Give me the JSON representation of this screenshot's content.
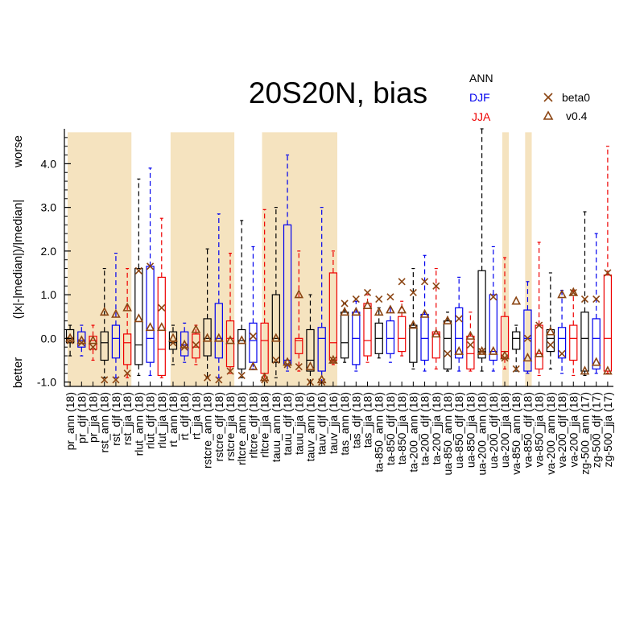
{
  "chart_data": {
    "type": "box",
    "title": "20S20N, bias",
    "ylabel": "(|x|-|median|)/|median|",
    "ylabel_top": "worse",
    "ylabel_bottom": "better",
    "ylim": [
      -1.1,
      4.8
    ],
    "yticks": [
      -1.0,
      0.0,
      1.0,
      2.0,
      3.0,
      4.0
    ],
    "ytick_labels": [
      "-1.0",
      "0.0",
      "1.0",
      "2.0",
      "3.0",
      "4.0"
    ],
    "legend": {
      "seasons": [
        {
          "label": "ANN",
          "color": "#000000"
        },
        {
          "label": "DJF",
          "color": "#0000ee"
        },
        {
          "label": "JJA",
          "color": "#ee0000"
        }
      ],
      "models": [
        {
          "label": "beta0",
          "marker": "x",
          "color": "#8b4513"
        },
        {
          "label": "v0.4",
          "marker": "triangle",
          "color": "#8b4513"
        }
      ],
      "placement": "top-right"
    },
    "highlight_color": "#f5e3bf",
    "highlight_ranges": [
      [
        0,
        5
      ],
      [
        9,
        14
      ],
      [
        17,
        23
      ],
      [
        38,
        38
      ],
      [
        40,
        40
      ]
    ],
    "categories": [
      "pr_ann (18)",
      "pr_djf (18)",
      "pr_jja (18)",
      "rst_ann (18)",
      "rst_djf (18)",
      "rst_jja (18)",
      "rlut_ann (18)",
      "rlut_djf (18)",
      "rlut_jja (18)",
      "rt_ann (18)",
      "rt_djf (18)",
      "rt_jja (18)",
      "rstcre_ann (18)",
      "rstcre_djf (18)",
      "rstcre_jja (18)",
      "rltcre_ann (18)",
      "rltcre_djf (18)",
      "rltcre_jja (18)",
      "tauu_ann (18)",
      "tauu_djf (18)",
      "tauu_jja (18)",
      "tauv_ann (16)",
      "tauv_djf (16)",
      "tauv_jja (16)",
      "tas_ann (18)",
      "tas_djf (18)",
      "tas_jja (18)",
      "ta-850_ann (18)",
      "ta-850_djf (18)",
      "ta-850_jja (18)",
      "ta-200_ann (18)",
      "ta-200_djf (18)",
      "ta-200_jja (18)",
      "ua-850_ann (18)",
      "ua-850_djf (18)",
      "ua-850_jja (18)",
      "ua-200_ann (18)",
      "ua-200_djf (18)",
      "ua-200_jja (18)",
      "va-850_ann (18)",
      "va-850_djf (18)",
      "va-850_jja (18)",
      "va-200_ann (18)",
      "va-200_djf (18)",
      "va-200_jja (18)",
      "zg-500_ann (17)",
      "zg-500_djf (17)",
      "zg-500_jja (17)"
    ],
    "seasons": [
      "ANN",
      "DJF",
      "JJA",
      "ANN",
      "DJF",
      "JJA",
      "ANN",
      "DJF",
      "JJA",
      "ANN",
      "DJF",
      "JJA",
      "ANN",
      "DJF",
      "JJA",
      "ANN",
      "DJF",
      "JJA",
      "ANN",
      "DJF",
      "JJA",
      "ANN",
      "DJF",
      "JJA",
      "ANN",
      "DJF",
      "JJA",
      "ANN",
      "DJF",
      "JJA",
      "ANN",
      "DJF",
      "JJA",
      "ANN",
      "DJF",
      "JJA",
      "ANN",
      "DJF",
      "JJA",
      "ANN",
      "DJF",
      "JJA",
      "ANN",
      "DJF",
      "JJA",
      "ANN",
      "DJF",
      "JJA"
    ],
    "boxes": [
      {
        "min": -0.4,
        "q1": -0.1,
        "median": 0.0,
        "q3": 0.2,
        "max": 0.3,
        "beta0": -0.05,
        "v04": 0.0
      },
      {
        "min": -0.4,
        "q1": -0.2,
        "median": -0.05,
        "q3": 0.15,
        "max": 0.3,
        "beta0": -0.1,
        "v04": -0.05
      },
      {
        "min": -0.5,
        "q1": -0.25,
        "median": -0.05,
        "q3": 0.05,
        "max": 0.3,
        "beta0": -0.2,
        "v04": -0.05
      },
      {
        "min": -0.9,
        "q1": -0.5,
        "median": -0.1,
        "q3": 0.15,
        "max": 1.6,
        "beta0": -0.95,
        "v04": 0.6
      },
      {
        "min": -0.9,
        "q1": -0.45,
        "median": 0.0,
        "q3": 0.3,
        "max": 1.95,
        "beta0": -0.95,
        "v04": 0.55
      },
      {
        "min": -0.9,
        "q1": -0.6,
        "median": -0.1,
        "q3": 0.1,
        "max": 1.6,
        "beta0": -0.8,
        "v04": 0.7
      },
      {
        "min": -0.85,
        "q1": -0.6,
        "median": -0.15,
        "q3": 1.6,
        "max": 3.65,
        "beta0": 1.55,
        "v04": 0.45
      },
      {
        "min": -0.85,
        "q1": -0.55,
        "median": 0.0,
        "q3": 1.65,
        "max": 3.9,
        "beta0": 1.65,
        "v04": 0.25
      },
      {
        "min": -0.9,
        "q1": -0.85,
        "median": -0.25,
        "q3": 1.4,
        "max": 2.75,
        "beta0": 0.7,
        "v04": 0.25
      },
      {
        "min": -0.6,
        "q1": -0.25,
        "median": -0.1,
        "q3": 0.15,
        "max": 0.3,
        "beta0": -0.1,
        "v04": 0.0
      },
      {
        "min": -0.55,
        "q1": -0.4,
        "median": -0.15,
        "q3": 0.15,
        "max": 0.35,
        "beta0": -0.2,
        "v04": -0.15
      },
      {
        "min": -0.6,
        "q1": -0.45,
        "median": -0.2,
        "q3": 0.1,
        "max": 0.3,
        "beta0": -0.15,
        "v04": 0.2
      },
      {
        "min": -0.9,
        "q1": -0.4,
        "median": 0.0,
        "q3": 0.45,
        "max": 2.05,
        "beta0": -0.9,
        "v04": 0.0
      },
      {
        "min": -0.9,
        "q1": -0.45,
        "median": 0.0,
        "q3": 0.8,
        "max": 2.85,
        "beta0": -0.95,
        "v04": 0.0
      },
      {
        "min": -0.8,
        "q1": -0.65,
        "median": 0.0,
        "q3": 0.4,
        "max": 1.95,
        "beta0": -0.75,
        "v04": -0.05
      },
      {
        "min": -0.9,
        "q1": -0.7,
        "median": -0.05,
        "q3": 0.2,
        "max": 2.7,
        "beta0": -0.85,
        "v04": -0.05
      },
      {
        "min": -0.7,
        "q1": -0.55,
        "median": -0.05,
        "q3": 0.35,
        "max": 2.1,
        "beta0": 0.05,
        "v04": -0.65
      },
      {
        "min": -0.95,
        "q1": -0.8,
        "median": -0.05,
        "q3": 0.35,
        "max": 2.95,
        "beta0": -0.95,
        "v04": -0.9
      },
      {
        "min": -0.9,
        "q1": -0.55,
        "median": 0.0,
        "q3": 1.0,
        "max": 3.0,
        "beta0": -0.5,
        "v04": 0.0
      },
      {
        "min": -0.75,
        "q1": -0.6,
        "median": -0.5,
        "q3": 2.6,
        "max": 4.2,
        "beta0": -0.6,
        "v04": -0.55
      },
      {
        "min": -0.75,
        "q1": -0.35,
        "median": -0.05,
        "q3": 0.0,
        "max": 2.0,
        "beta0": -0.65,
        "v04": 1.0
      },
      {
        "min": -1.0,
        "q1": -0.75,
        "median": -0.5,
        "q3": 0.2,
        "max": 1.0,
        "beta0": -1.0,
        "v04": -0.65
      },
      {
        "min": -1.0,
        "q1": -0.75,
        "median": 0.0,
        "q3": 0.25,
        "max": 3.0,
        "beta0": -1.0,
        "v04": -0.95
      },
      {
        "min": -0.6,
        "q1": -0.5,
        "median": -0.1,
        "q3": 1.5,
        "max": 2.0,
        "beta0": -0.5,
        "v04": -0.5
      },
      {
        "min": -0.55,
        "q1": -0.45,
        "median": -0.1,
        "q3": 0.6,
        "max": 0.8,
        "beta0": 0.8,
        "v04": 0.6
      },
      {
        "min": -0.75,
        "q1": -0.6,
        "median": 0.0,
        "q3": 0.6,
        "max": 0.85,
        "beta0": 0.9,
        "v04": 0.6
      },
      {
        "min": -0.55,
        "q1": -0.4,
        "median": -0.05,
        "q3": 0.8,
        "max": 1.0,
        "beta0": 1.05,
        "v04": 0.75
      },
      {
        "min": -0.45,
        "q1": -0.35,
        "median": 0.0,
        "q3": 0.35,
        "max": 0.7,
        "beta0": 0.9,
        "v04": 0.6
      },
      {
        "min": -0.55,
        "q1": -0.35,
        "median": 0.0,
        "q3": 0.4,
        "max": 0.7,
        "beta0": 0.95,
        "v04": 0.65
      },
      {
        "min": -0.4,
        "q1": -0.3,
        "median": 0.0,
        "q3": 0.5,
        "max": 0.85,
        "beta0": 1.3,
        "v04": 0.65
      },
      {
        "min": -0.7,
        "q1": -0.55,
        "median": 0.25,
        "q3": 0.3,
        "max": 1.6,
        "beta0": 1.05,
        "v04": 0.3
      },
      {
        "min": -0.75,
        "q1": -0.5,
        "median": 0.0,
        "q3": 0.55,
        "max": 1.9,
        "beta0": 1.3,
        "v04": 0.55
      },
      {
        "min": -0.7,
        "q1": -0.45,
        "median": 0.1,
        "q3": 0.15,
        "max": 1.6,
        "beta0": 1.2,
        "v04": 0.1
      },
      {
        "min": -0.75,
        "q1": -0.7,
        "median": 0.0,
        "q3": 0.4,
        "max": 0.6,
        "beta0": -0.35,
        "v04": 0.4
      },
      {
        "min": -0.75,
        "q1": -0.45,
        "median": 0.0,
        "q3": 0.7,
        "max": 1.4,
        "beta0": 0.45,
        "v04": -0.3
      },
      {
        "min": -0.75,
        "q1": -0.7,
        "median": -0.35,
        "q3": 0.05,
        "max": 0.6,
        "beta0": -0.15,
        "v04": 0.05
      },
      {
        "min": -0.75,
        "q1": -0.45,
        "median": -0.3,
        "q3": 1.55,
        "max": 4.8,
        "beta0": -0.3,
        "v04": -0.3
      },
      {
        "min": -0.75,
        "q1": -0.5,
        "median": -0.3,
        "q3": 1.0,
        "max": 2.1,
        "beta0": 0.95,
        "v04": -0.3
      },
      {
        "min": -0.7,
        "q1": -0.45,
        "median": -0.3,
        "q3": 0.5,
        "max": 1.85,
        "beta0": -0.45,
        "v04": -0.4
      },
      {
        "min": -0.75,
        "q1": -0.25,
        "median": 0.0,
        "q3": 0.15,
        "max": 0.3,
        "beta0": -0.7,
        "v04": 0.85
      },
      {
        "min": -0.8,
        "q1": -0.75,
        "median": 0.0,
        "q3": 0.65,
        "max": 1.3,
        "beta0": 0.0,
        "v04": -0.45
      },
      {
        "min": -0.85,
        "q1": -0.7,
        "median": -0.35,
        "q3": 0.3,
        "max": 2.2,
        "beta0": 0.3,
        "v04": -0.35
      },
      {
        "min": -0.7,
        "q1": -0.3,
        "median": 0.0,
        "q3": 0.2,
        "max": 1.5,
        "beta0": -0.15,
        "v04": 0.15
      },
      {
        "min": -0.8,
        "q1": -0.45,
        "median": 0.0,
        "q3": 0.25,
        "max": 1.1,
        "beta0": -0.35,
        "v04": 1.0
      },
      {
        "min": -0.85,
        "q1": -0.5,
        "median": 0.0,
        "q3": 0.3,
        "max": 1.1,
        "beta0": 1.05,
        "v04": 1.05
      },
      {
        "min": -0.85,
        "q1": -0.75,
        "median": 0.0,
        "q3": 0.6,
        "max": 2.9,
        "beta0": 0.9,
        "v04": -0.75
      },
      {
        "min": -0.8,
        "q1": -0.7,
        "median": 0.0,
        "q3": 0.45,
        "max": 2.4,
        "beta0": 0.9,
        "v04": -0.55
      },
      {
        "min": -0.8,
        "q1": -0.75,
        "median": 0.0,
        "q3": 1.45,
        "max": 4.4,
        "beta0": 1.5,
        "v04": -0.75
      }
    ]
  }
}
